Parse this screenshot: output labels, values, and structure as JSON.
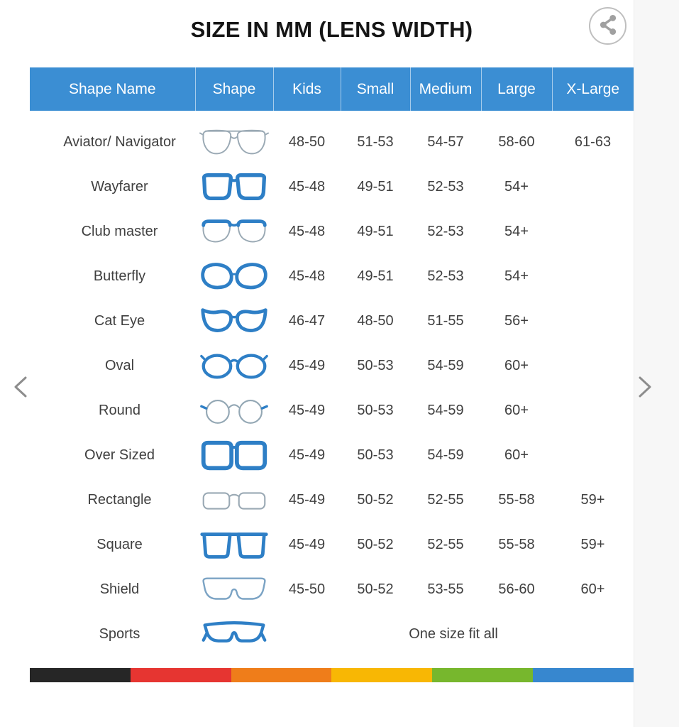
{
  "page": {
    "title": "SIZE IN MM (LENS WIDTH)"
  },
  "icons": {
    "share": "share-icon",
    "prev": "chevron-left-icon",
    "next": "chevron-right-icon"
  },
  "table": {
    "columns": [
      "Shape Name",
      "Shape",
      "Kids",
      "Small",
      "Medium",
      "Large",
      "X-Large"
    ],
    "rows": [
      {
        "name": "Aviator/ Navigator",
        "icon": "aviator-glasses-icon",
        "kids": "48-50",
        "small": "51-53",
        "medium": "54-57",
        "large": "58-60",
        "xlarge": "61-63"
      },
      {
        "name": "Wayfarer",
        "icon": "wayfarer-glasses-icon",
        "kids": "45-48",
        "small": "49-51",
        "medium": "52-53",
        "large": "54+",
        "xlarge": ""
      },
      {
        "name": "Club master",
        "icon": "clubmaster-glasses-icon",
        "kids": "45-48",
        "small": "49-51",
        "medium": "52-53",
        "large": "54+",
        "xlarge": ""
      },
      {
        "name": "Butterfly",
        "icon": "butterfly-glasses-icon",
        "kids": "45-48",
        "small": "49-51",
        "medium": "52-53",
        "large": "54+",
        "xlarge": ""
      },
      {
        "name": "Cat Eye",
        "icon": "cateye-glasses-icon",
        "kids": "46-47",
        "small": "48-50",
        "medium": "51-55",
        "large": "56+",
        "xlarge": ""
      },
      {
        "name": "Oval",
        "icon": "oval-glasses-icon",
        "kids": "45-49",
        "small": "50-53",
        "medium": "54-59",
        "large": "60+",
        "xlarge": ""
      },
      {
        "name": "Round",
        "icon": "round-glasses-icon",
        "kids": "45-49",
        "small": "50-53",
        "medium": "54-59",
        "large": "60+",
        "xlarge": ""
      },
      {
        "name": "Over Sized",
        "icon": "oversized-glasses-icon",
        "kids": "45-49",
        "small": "50-53",
        "medium": "54-59",
        "large": "60+",
        "xlarge": ""
      },
      {
        "name": "Rectangle",
        "icon": "rectangle-glasses-icon",
        "kids": "45-49",
        "small": "50-52",
        "medium": "52-55",
        "large": "55-58",
        "xlarge": "59+"
      },
      {
        "name": "Square",
        "icon": "square-glasses-icon",
        "kids": "45-49",
        "small": "50-52",
        "medium": "52-55",
        "large": "55-58",
        "xlarge": "59+"
      },
      {
        "name": "Shield",
        "icon": "shield-glasses-icon",
        "kids": "45-50",
        "small": "50-52",
        "medium": "53-55",
        "large": "56-60",
        "xlarge": "60+"
      },
      {
        "name": "Sports",
        "icon": "sports-glasses-icon",
        "note": "One size fit all"
      }
    ]
  },
  "colors": {
    "header_bg": "#3b8ed3",
    "frame_blue": "#2e7fc6",
    "outline_gray": "#9aa9b4",
    "title_text": "#151515",
    "cell_text": "#3f3f3f",
    "arrow_gray": "#8d8d8d",
    "share_gray": "#a0a0a0"
  },
  "footer_stripe": [
    "#262626",
    "#e63531",
    "#ef7d1a",
    "#f8b704",
    "#77b72d",
    "#3787cf"
  ]
}
